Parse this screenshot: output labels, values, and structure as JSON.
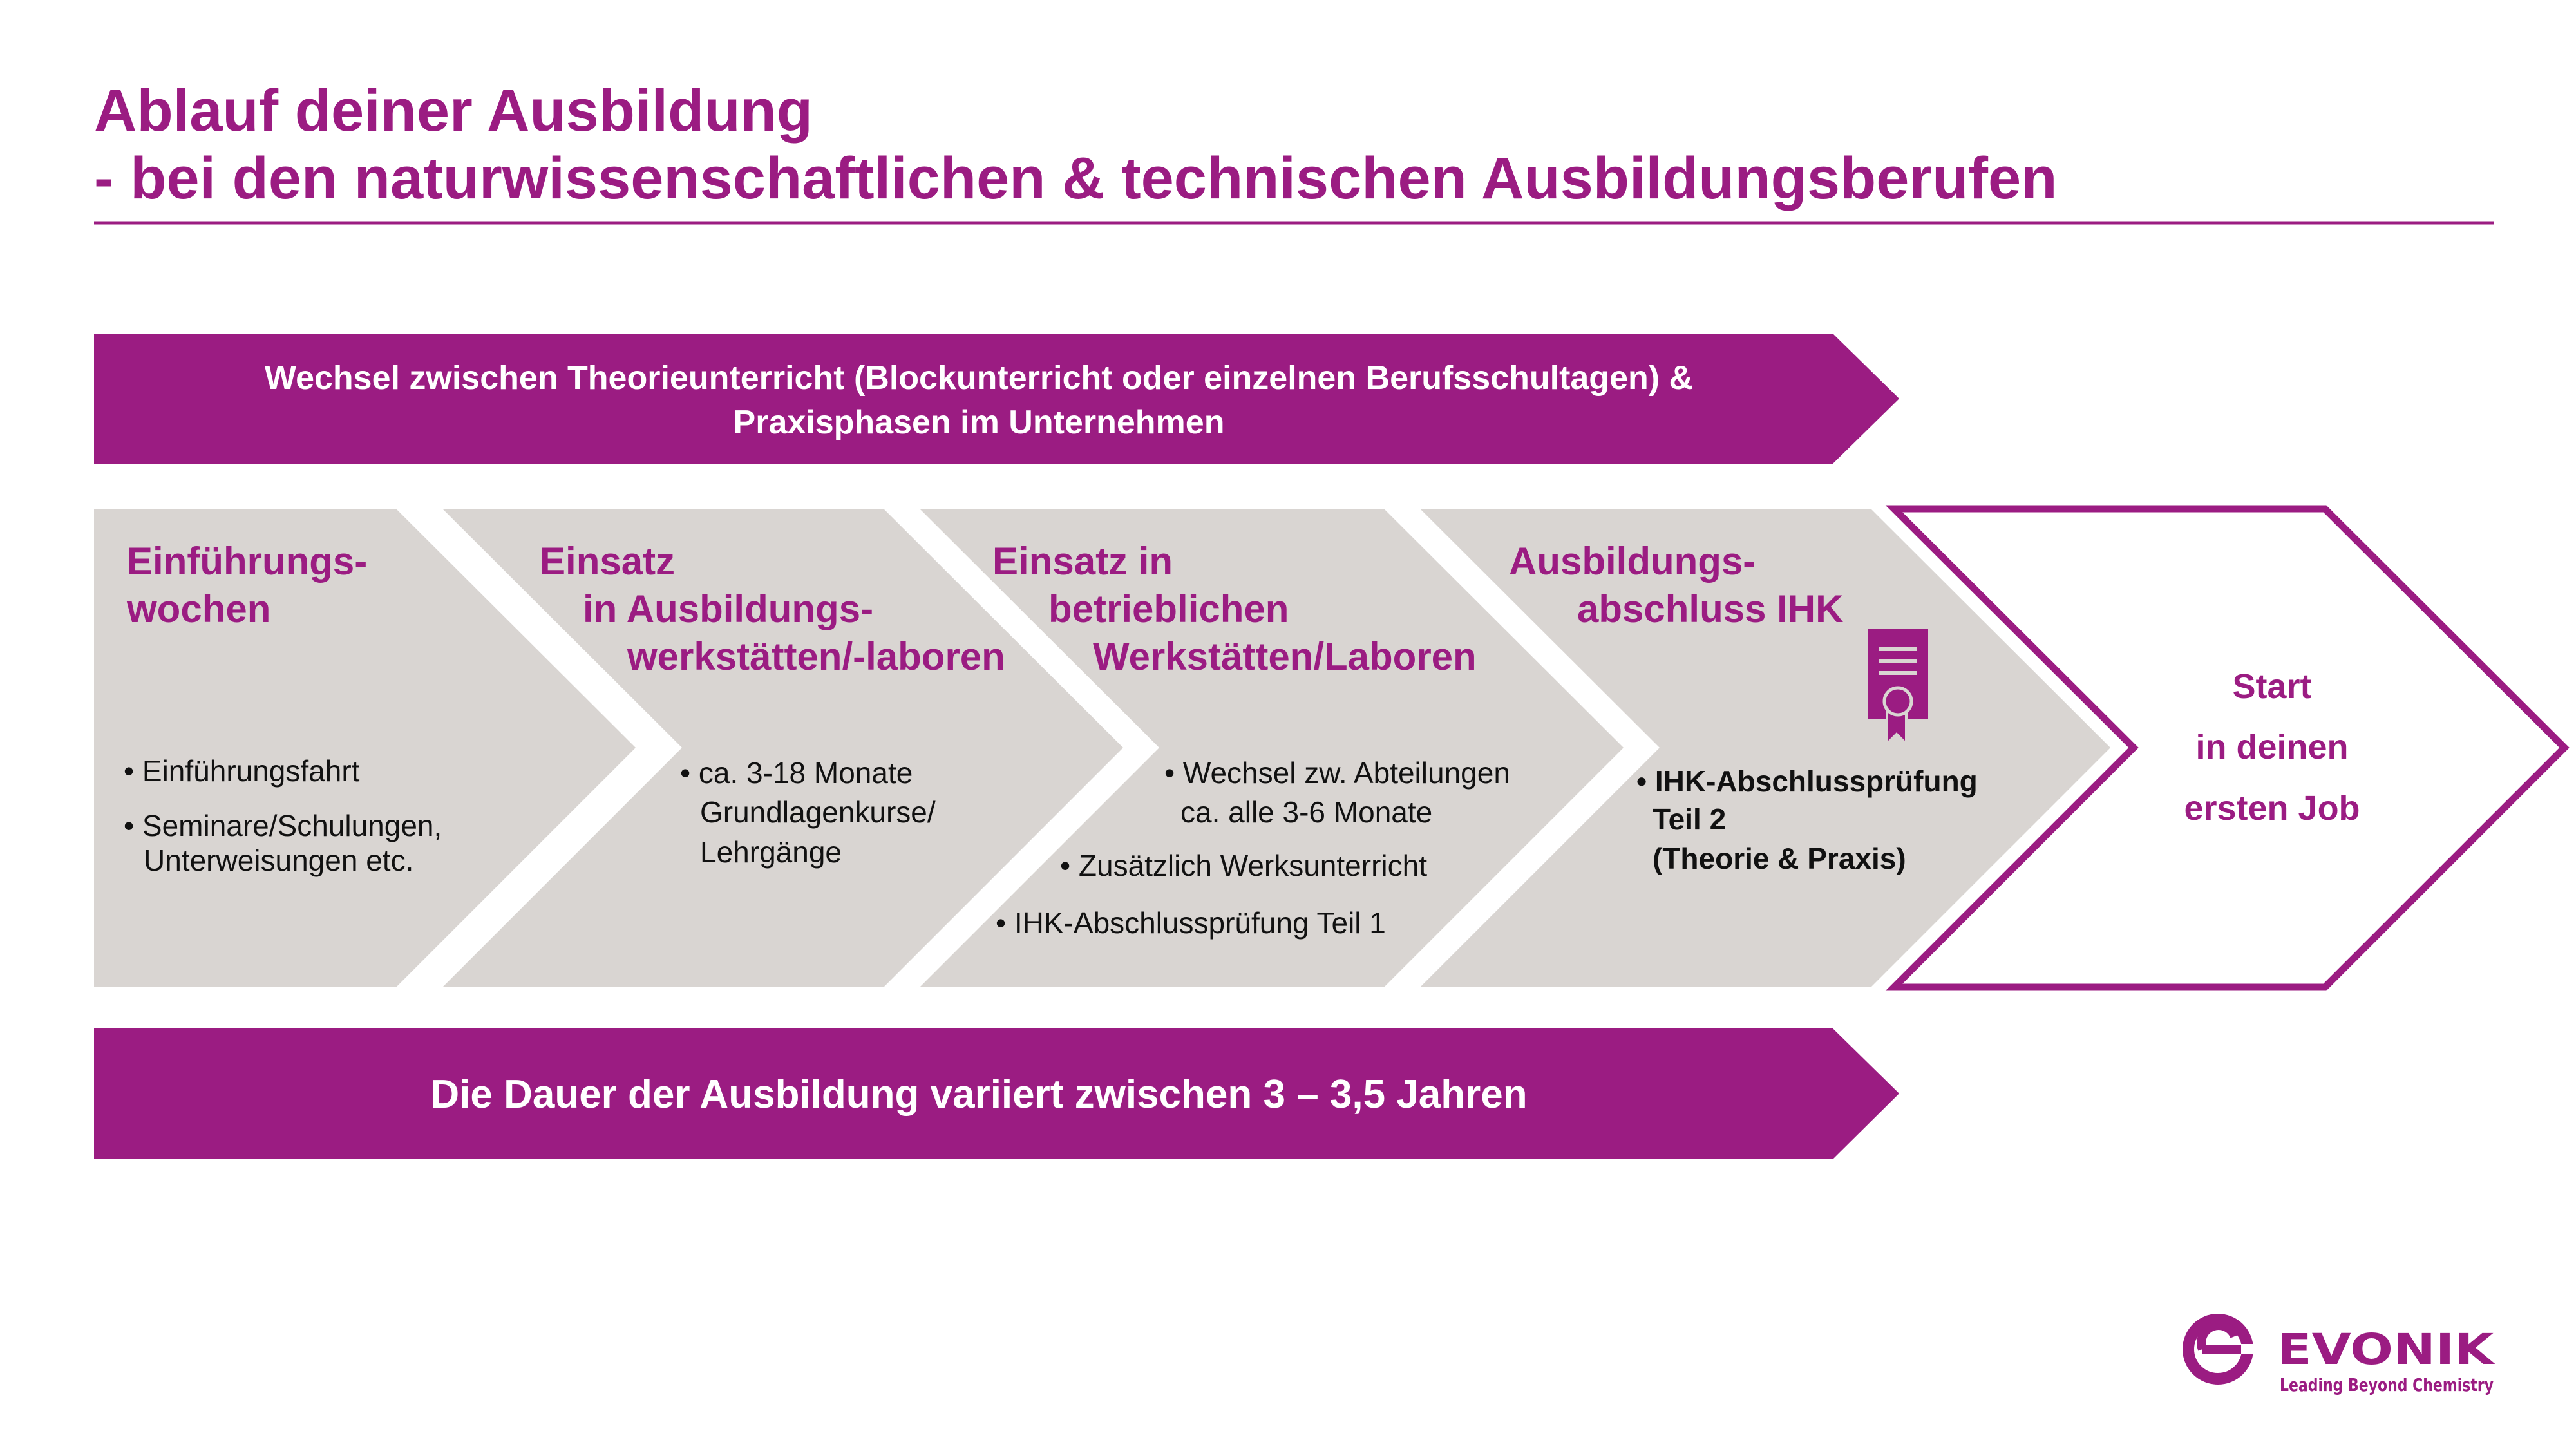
{
  "colors": {
    "accent": "#9b1c82",
    "phase_fill": "#d9d5d2",
    "text": "#111111"
  },
  "title": {
    "line1": "Ablauf deiner Ausbildung",
    "line2": "- bei den naturwissenschaftlichen & technischen Ausbildungsberufen"
  },
  "top_banner": {
    "line1": "Wechsel zwischen Theorieunterricht (Blockunterricht oder einzelnen Berufsschultagen) &",
    "line2": "Praxisphasen im Unternehmen"
  },
  "phases": [
    {
      "heading": [
        "Einführungs-",
        "wochen"
      ],
      "bullets": [
        "• Einführungsfahrt",
        "• Seminare/Schulungen,",
        "Unterweisungen etc."
      ]
    },
    {
      "heading": [
        "Einsatz",
        "in Ausbildungs-",
        "werkstätten/-laboren"
      ],
      "bullets": [
        "• ca. 3-18 Monate",
        "Grundlagenkurse/",
        "Lehrgänge"
      ]
    },
    {
      "heading": [
        "Einsatz in",
        "betrieblichen",
        "Werkstätten/Laboren"
      ],
      "bullets": [
        "• Wechsel zw. Abteilungen",
        "ca. alle 3-6 Monate",
        "• Zusätzlich Werksunterricht",
        "• IHK-Abschlussprüfung Teil 1"
      ]
    },
    {
      "heading": [
        "Ausbildungs-",
        "abschluss IHK"
      ],
      "icon": "certificate-icon",
      "bullets": [
        "• IHK-Abschlussprüfung",
        "Teil 2",
        "(Theorie & Praxis)"
      ]
    },
    {
      "heading": [
        "Start",
        "in deinen",
        "ersten Job"
      ]
    }
  ],
  "bottom_banner": {
    "text": "Die Dauer der Ausbildung variiert zwischen 3 – 3,5 Jahren"
  },
  "logo": {
    "wordmark": "EVONIK",
    "tagline": "Leading Beyond Chemistry"
  }
}
